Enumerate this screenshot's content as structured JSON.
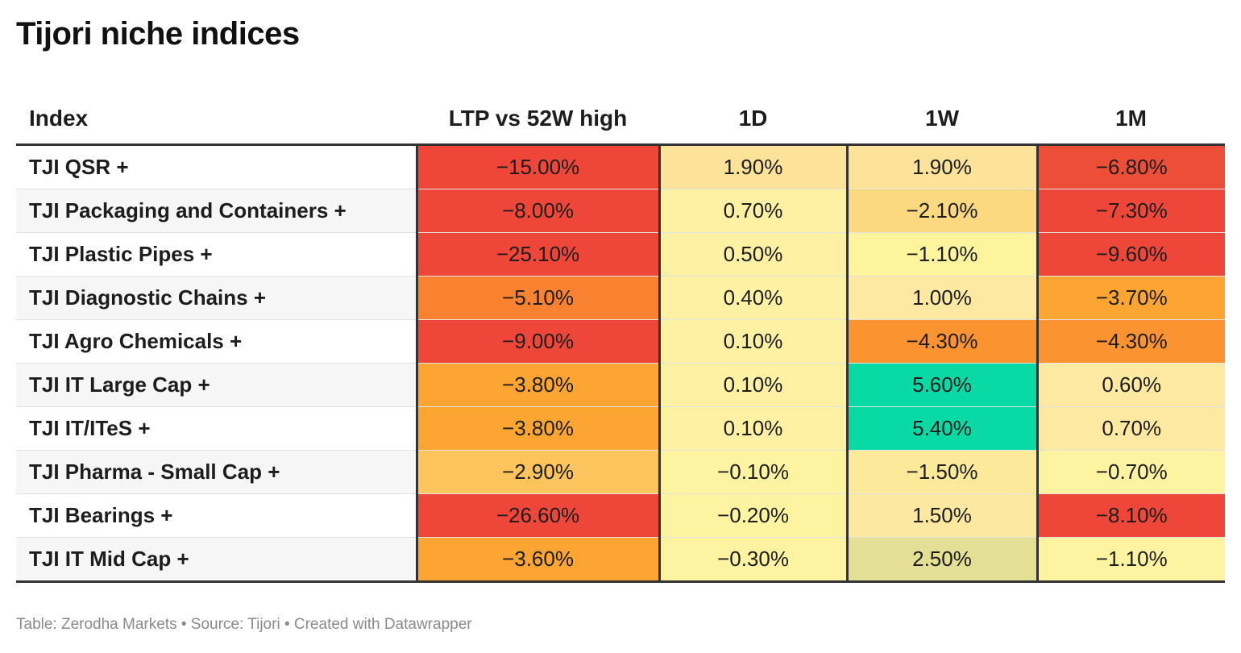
{
  "title": "Tijori niche indices",
  "footer": "Table: Zerodha Markets • Source: Tijori • Created with Datawrapper",
  "chart_data": {
    "type": "table",
    "title": "Tijori niche indices",
    "columns": [
      "Index",
      "LTP vs 52W high",
      "1D",
      "1W",
      "1M"
    ],
    "rows": [
      {
        "name": "TJI QSR +",
        "values": [
          "−15.00%",
          "1.90%",
          "1.90%",
          "−6.80%"
        ],
        "colors": [
          "#ee473a",
          "#fde39a",
          "#fde39a",
          "#ec4e38"
        ]
      },
      {
        "name": "TJI Packaging and Containers +",
        "values": [
          "−8.00%",
          "0.70%",
          "−2.10%",
          "−7.30%"
        ],
        "colors": [
          "#ee473a",
          "#fef1a4",
          "#fcd881",
          "#ee473a"
        ]
      },
      {
        "name": "TJI Plastic Pipes +",
        "values": [
          "−25.10%",
          "0.50%",
          "−1.10%",
          "−9.60%"
        ],
        "colors": [
          "#ee473a",
          "#fef1a4",
          "#fdf49d",
          "#ee473a"
        ]
      },
      {
        "name": "TJI Diagnostic Chains +",
        "values": [
          "−5.10%",
          "0.40%",
          "1.00%",
          "−3.70%"
        ],
        "colors": [
          "#f8822f",
          "#fef1a4",
          "#fee9a2",
          "#fca533"
        ]
      },
      {
        "name": "TJI Agro Chemicals +",
        "values": [
          "−9.00%",
          "0.10%",
          "−4.30%",
          "−4.30%"
        ],
        "colors": [
          "#ee473a",
          "#fef1a4",
          "#fb9330",
          "#fb9330"
        ]
      },
      {
        "name": "TJI IT Large Cap +",
        "values": [
          "−3.80%",
          "0.10%",
          "5.60%",
          "0.60%"
        ],
        "colors": [
          "#fca533",
          "#fef1a4",
          "#08d9a5",
          "#fee9a2"
        ]
      },
      {
        "name": "TJI IT/ITeS +",
        "values": [
          "−3.80%",
          "0.10%",
          "5.40%",
          "0.70%"
        ],
        "colors": [
          "#fca533",
          "#fef1a4",
          "#08d9a5",
          "#fee9a2"
        ]
      },
      {
        "name": "TJI Pharma - Small Cap +",
        "values": [
          "−2.90%",
          "−0.10%",
          "−1.50%",
          "−0.70%"
        ],
        "colors": [
          "#fdc45e",
          "#fef3a0",
          "#fde99a",
          "#fef3a0"
        ]
      },
      {
        "name": "TJI Bearings +",
        "values": [
          "−26.60%",
          "−0.20%",
          "1.50%",
          "−8.10%"
        ],
        "colors": [
          "#ee473a",
          "#fef3a0",
          "#fde8a2",
          "#ee473a"
        ]
      },
      {
        "name": "TJI IT Mid Cap +",
        "values": [
          "−3.60%",
          "−0.30%",
          "2.50%",
          "−1.10%"
        ],
        "colors": [
          "#fca533",
          "#fef3a0",
          "#e3e096",
          "#fef3a0"
        ]
      }
    ]
  }
}
